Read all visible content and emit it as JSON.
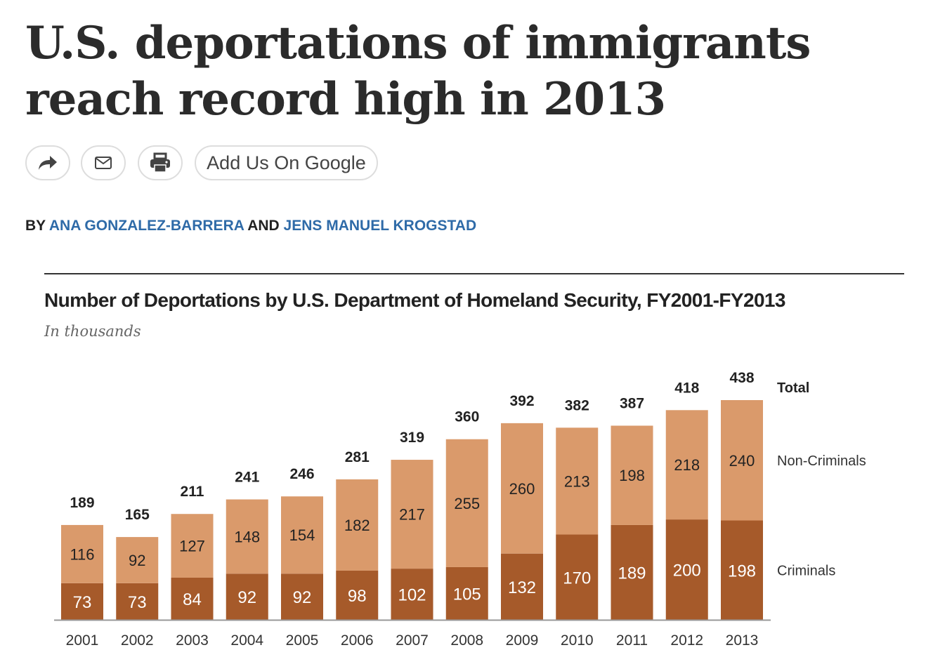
{
  "article": {
    "title": "U.S. deportations of immigrants reach record high in 2013",
    "buttons": {
      "share_icon": "share-icon",
      "email_icon": "email-icon",
      "print_icon": "print-icon",
      "google": "Add Us On Google"
    },
    "byline": {
      "by": "BY",
      "author1": "ANA GONZALEZ-BARRERA",
      "and": "AND",
      "author2": "JENS MANUEL KROGSTAD"
    }
  },
  "colors": {
    "criminals": "#A65A2A",
    "non_criminals": "#DA9A6B",
    "link": "#2f6ba8"
  },
  "chart_data": {
    "type": "bar",
    "stacked": true,
    "title": "Number of Deportations by U.S. Department of Homeland Security, FY2001-FY2013",
    "subtitle": "In thousands",
    "categories": [
      "2001",
      "2002",
      "2003",
      "2004",
      "2005",
      "2006",
      "2007",
      "2008",
      "2009",
      "2010",
      "2011",
      "2012",
      "2013"
    ],
    "series": [
      {
        "name": "Criminals",
        "values": [
          73,
          73,
          84,
          92,
          92,
          98,
          102,
          105,
          132,
          170,
          189,
          200,
          198
        ]
      },
      {
        "name": "Non-Criminals",
        "values": [
          116,
          92,
          127,
          148,
          154,
          182,
          217,
          255,
          260,
          213,
          198,
          218,
          240
        ]
      }
    ],
    "totals": {
      "name": "Total",
      "values": [
        189,
        165,
        211,
        241,
        246,
        281,
        319,
        360,
        392,
        382,
        387,
        418,
        438
      ]
    },
    "ylim": [
      0,
      450
    ],
    "legend": "right"
  }
}
